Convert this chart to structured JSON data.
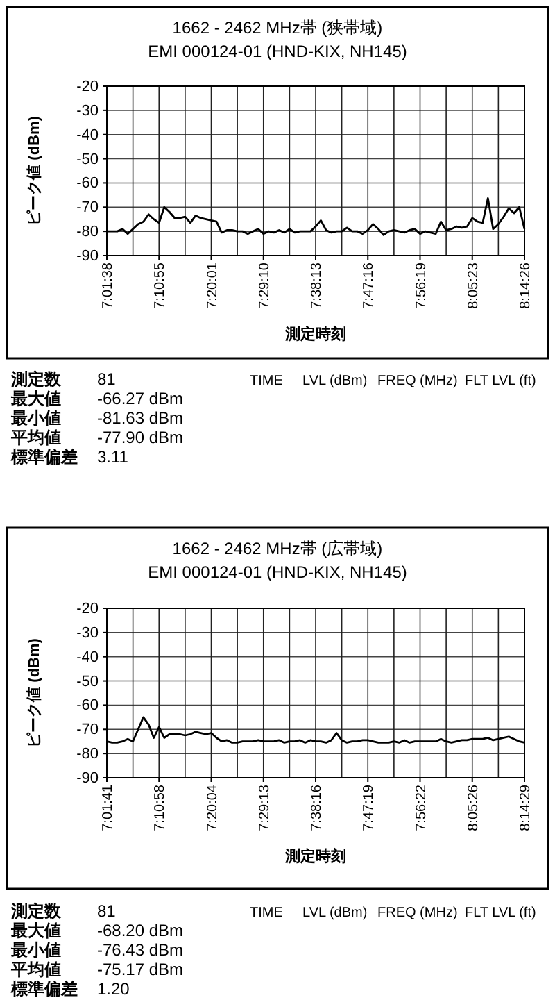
{
  "chart_data": [
    {
      "type": "line",
      "title": "1662 - 2462 MHz帯 (狭帯域)",
      "subtitle": "EMI 000124-01 (HND-KIX, NH145)",
      "xlabel": "測定時刻",
      "ylabel": "ピーク値 (dBm)",
      "categories": [
        "7:01:38",
        null,
        null,
        null,
        null,
        null,
        null,
        null,
        null,
        null,
        "7:10:55",
        null,
        null,
        null,
        null,
        null,
        null,
        null,
        null,
        null,
        "7:20:01",
        null,
        null,
        null,
        null,
        null,
        null,
        null,
        null,
        null,
        "7:29:10",
        null,
        null,
        null,
        null,
        null,
        null,
        null,
        null,
        null,
        "7:38:13",
        null,
        null,
        null,
        null,
        null,
        null,
        null,
        null,
        null,
        "7:47:16",
        null,
        null,
        null,
        null,
        null,
        null,
        null,
        null,
        null,
        "7:56:19",
        null,
        null,
        null,
        null,
        null,
        null,
        null,
        null,
        null,
        "8:05:23",
        null,
        null,
        null,
        null,
        null,
        null,
        null,
        null,
        null,
        "8:14:26"
      ],
      "series": [
        {
          "color": "#000000",
          "values": [
            -80,
            -80,
            -80,
            -79,
            -81,
            -79,
            -77,
            -76,
            -73,
            -75,
            -76.5,
            -70,
            -72,
            -74.5,
            -74.5,
            -74,
            -76.5,
            -73.5,
            -74.5,
            -75,
            -75.5,
            -76,
            -80.5,
            -79.5,
            -79.5,
            -80,
            -80,
            -81,
            -80,
            -79,
            -81,
            -80,
            -80.5,
            -79.5,
            -80.5,
            -79,
            -80.5,
            -80,
            -80,
            -80,
            -78,
            -75.5,
            -79.5,
            -80.5,
            -80,
            -80,
            -78.5,
            -80,
            -80,
            -81,
            -79.5,
            -77,
            -79,
            -81.5,
            -80,
            -79.5,
            -80,
            -80.5,
            -79.5,
            -79,
            -81,
            -80,
            -80.5,
            -81,
            -76,
            -79.5,
            -79,
            -78,
            -78.5,
            -78,
            -74.5,
            -76,
            -76.5,
            -66.3,
            -79,
            -77,
            -74,
            -70.5,
            -72.5,
            -70,
            -79
          ]
        }
      ],
      "ylim": [
        -90,
        -20
      ],
      "yticks": [
        -20,
        -30,
        -40,
        -50,
        -60,
        -70,
        -80,
        -90
      ],
      "grid": true,
      "marker": "none",
      "line_style": "solid",
      "annotations": [
        "測定数",
        "81",
        "最大値",
        "-66.27 dBm",
        "最小値",
        "-81.63 dBm",
        "平均値",
        "-77.90 dBm",
        "標準偏差",
        "3.11",
        "TIME",
        "LVL (dBm)",
        "FREQ (MHz)",
        "FLT LVL (ft)"
      ]
    },
    {
      "type": "line",
      "title": "1662 - 2462 MHz帯 (広帯域)",
      "subtitle": "EMI 000124-01 (HND-KIX, NH145)",
      "xlabel": "測定時刻",
      "ylabel": "ピーク値 (dBm)",
      "categories": [
        "7:01:41",
        null,
        null,
        null,
        null,
        null,
        null,
        null,
        null,
        null,
        "7:10:58",
        null,
        null,
        null,
        null,
        null,
        null,
        null,
        null,
        null,
        "7:20:04",
        null,
        null,
        null,
        null,
        null,
        null,
        null,
        null,
        null,
        "7:29:13",
        null,
        null,
        null,
        null,
        null,
        null,
        null,
        null,
        null,
        "7:38:16",
        null,
        null,
        null,
        null,
        null,
        null,
        null,
        null,
        null,
        "7:47:19",
        null,
        null,
        null,
        null,
        null,
        null,
        null,
        null,
        null,
        "7:56:22",
        null,
        null,
        null,
        null,
        null,
        null,
        null,
        null,
        null,
        "8:05:26",
        null,
        null,
        null,
        null,
        null,
        null,
        null,
        null,
        null,
        "8:14:29"
      ],
      "series": [
        {
          "color": "#000000",
          "values": [
            -75,
            -75.5,
            -75.5,
            -75,
            -74,
            -75,
            -70,
            -65,
            -68,
            -73.5,
            -69,
            -73.5,
            -72,
            -72,
            -72,
            -72.5,
            -72,
            -71,
            -71.5,
            -72,
            -71.5,
            -73.5,
            -75,
            -74.5,
            -75.5,
            -75.5,
            -75,
            -75,
            -75,
            -74.5,
            -75,
            -75,
            -75,
            -74.5,
            -75.5,
            -75,
            -75,
            -74.5,
            -75.5,
            -74.5,
            -75,
            -75,
            -75.5,
            -74.5,
            -71.5,
            -74.5,
            -75.5,
            -75,
            -75,
            -74.5,
            -74.5,
            -75,
            -75.5,
            -75.5,
            -75.5,
            -75,
            -75.5,
            -74.5,
            -75.5,
            -75,
            -75,
            -75,
            -75,
            -75,
            -74,
            -75,
            -75.5,
            -75,
            -74.5,
            -74.5,
            -74,
            -74,
            -74,
            -73.5,
            -74.5,
            -74,
            -73.5,
            -73,
            -74,
            -75,
            -75.5
          ]
        }
      ],
      "ylim": [
        -90,
        -20
      ],
      "yticks": [
        -20,
        -30,
        -40,
        -50,
        -60,
        -70,
        -80,
        -90
      ],
      "grid": true,
      "marker": "none",
      "line_style": "solid",
      "annotations": [
        "測定数",
        "81",
        "最大値",
        "-68.20 dBm",
        "最小値",
        "-76.43 dBm",
        "平均値",
        "-75.17 dBm",
        "標準偏差",
        "1.20",
        "TIME",
        "LVL (dBm)",
        "FREQ (MHz)",
        "FLT LVL (ft)"
      ]
    }
  ]
}
